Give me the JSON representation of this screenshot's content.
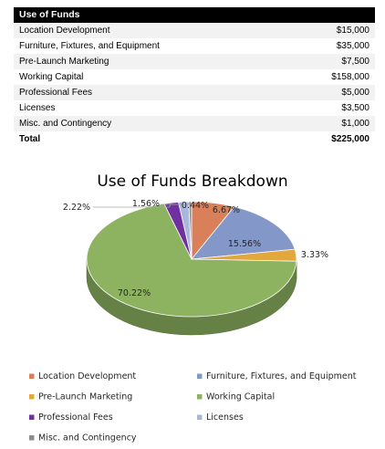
{
  "table": {
    "header": "Use of Funds",
    "rows": [
      {
        "label": "Location Development",
        "amount": "$15,000"
      },
      {
        "label": "Furniture, Fixtures, and Equipment",
        "amount": "$35,000"
      },
      {
        "label": "Pre-Launch Marketing",
        "amount": "$7,500"
      },
      {
        "label": "Working Capital",
        "amount": "$158,000"
      },
      {
        "label": "Professional Fees",
        "amount": "$5,000"
      },
      {
        "label": "Licenses",
        "amount": "$3,500"
      },
      {
        "label": "Misc. and Contingency",
        "amount": "$1,000"
      }
    ],
    "total_label": "Total",
    "total_amount": "$225,000"
  },
  "chart_data": {
    "type": "pie",
    "title": "Use of Funds Breakdown",
    "categories": [
      "Location Development",
      "Furniture, Fixtures, and Equipment",
      "Pre-Launch Marketing",
      "Working Capital",
      "Professional Fees",
      "Licenses",
      "Misc. and Contingency"
    ],
    "values": [
      6.67,
      15.56,
      3.33,
      70.22,
      2.22,
      1.56,
      0.44
    ],
    "labels": [
      "6.67%",
      "15.56%",
      "3.33%",
      "70.22%",
      "2.22%",
      "1.56%",
      "0.44%"
    ],
    "colors": [
      "#d9805b",
      "#8497c9",
      "#e2a83d",
      "#8db360",
      "#7030a0",
      "#a9b7db",
      "#8c8c8c"
    ],
    "legend": "bottom",
    "style": "3d"
  }
}
